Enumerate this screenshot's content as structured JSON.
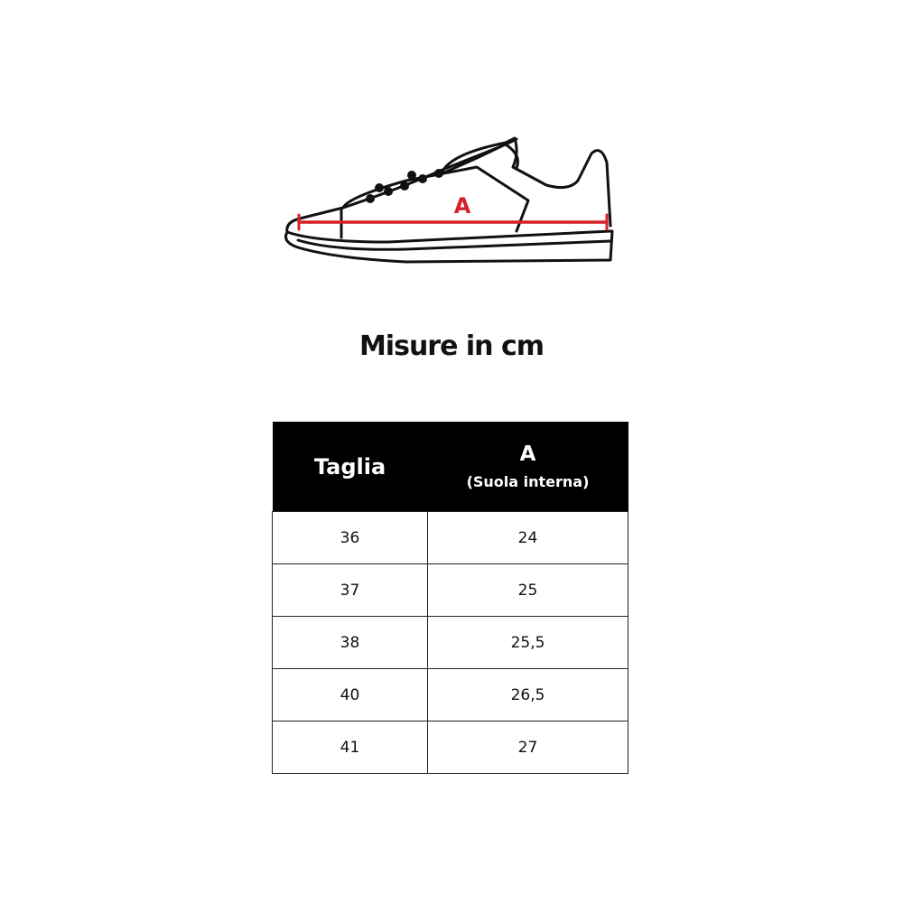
{
  "illustration": {
    "label": "A",
    "measure_color": "#d62027"
  },
  "title": "Misure in cm",
  "table": {
    "headers": {
      "size": "Taglia",
      "a": "A",
      "a_sub": "(Suola interna)"
    },
    "rows": [
      {
        "size": "36",
        "a": "24"
      },
      {
        "size": "37",
        "a": "25"
      },
      {
        "size": "38",
        "a": "25,5"
      },
      {
        "size": "40",
        "a": "26,5"
      },
      {
        "size": "41",
        "a": "27"
      }
    ]
  }
}
